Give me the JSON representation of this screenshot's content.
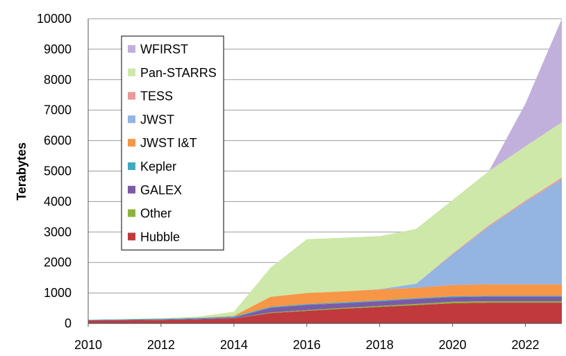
{
  "chart_data": {
    "type": "area",
    "stacked": true,
    "ylabel": "Terabytes",
    "xlabel": "",
    "title": "",
    "x": [
      2010,
      2011,
      2012,
      2013,
      2014,
      2015,
      2016,
      2017,
      2018,
      2019,
      2020,
      2021,
      2022,
      2023
    ],
    "x_ticks": [
      "2010",
      "2012",
      "2014",
      "2016",
      "2018",
      "2020",
      "2022"
    ],
    "y_ticks": [
      "0",
      "1000",
      "2000",
      "3000",
      "4000",
      "5000",
      "6000",
      "7000",
      "8000",
      "9000",
      "10000"
    ],
    "xlim": [
      2010,
      2023
    ],
    "ylim": [
      0,
      10000
    ],
    "grid": "horizontal",
    "legend_position": "top-left",
    "series": [
      {
        "name": "Hubble",
        "color": "#c0393c",
        "values": [
          90,
          100,
          110,
          130,
          160,
          340,
          410,
          480,
          540,
          600,
          660,
          680,
          680,
          680
        ]
      },
      {
        "name": "Other",
        "color": "#8bb33c",
        "values": [
          0,
          0,
          0,
          0,
          0,
          20,
          25,
          30,
          35,
          40,
          50,
          50,
          50,
          50
        ]
      },
      {
        "name": "GALEX",
        "color": "#7b5aa6",
        "values": [
          20,
          20,
          20,
          25,
          30,
          150,
          170,
          150,
          150,
          160,
          150,
          150,
          150,
          150
        ]
      },
      {
        "name": "Kepler",
        "color": "#3fa9c4",
        "values": [
          10,
          15,
          20,
          25,
          30,
          30,
          30,
          30,
          30,
          30,
          30,
          30,
          30,
          30
        ]
      },
      {
        "name": "JWST I&T",
        "color": "#f79646",
        "values": [
          0,
          0,
          0,
          0,
          30,
          330,
          360,
          360,
          360,
          340,
          370,
          370,
          370,
          370
        ]
      },
      {
        "name": "JWST",
        "color": "#94b4e2",
        "values": [
          0,
          0,
          0,
          0,
          0,
          0,
          0,
          0,
          10,
          130,
          1000,
          1900,
          2700,
          3450
        ]
      },
      {
        "name": "TESS",
        "color": "#e89a9a",
        "values": [
          0,
          0,
          0,
          0,
          0,
          0,
          0,
          0,
          0,
          0,
          30,
          40,
          50,
          60
        ]
      },
      {
        "name": "Pan-STARRS",
        "color": "#cde8a8",
        "values": [
          0,
          15,
          20,
          40,
          130,
          950,
          1770,
          1760,
          1740,
          1800,
          1760,
          1780,
          1780,
          1810
        ]
      },
      {
        "name": "WFIRST",
        "color": "#c2b0dc",
        "values": [
          0,
          0,
          0,
          0,
          0,
          0,
          0,
          0,
          0,
          0,
          0,
          0,
          1400,
          3400
        ]
      }
    ],
    "legend_order": [
      "WFIRST",
      "Pan-STARRS",
      "TESS",
      "JWST",
      "JWST I&T",
      "Kepler",
      "GALEX",
      "Other",
      "Hubble"
    ]
  }
}
